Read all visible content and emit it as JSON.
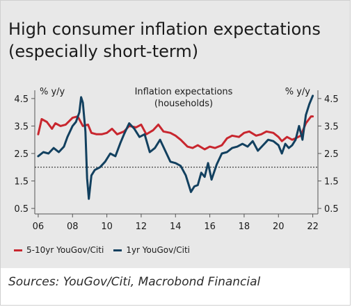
{
  "title_lines": [
    "High consumer inflation expectations",
    "(especially short-term)"
  ],
  "source": "Sources: YouGov/Citi, Macrobond Financial",
  "colors": {
    "series_red": "#c8262e",
    "series_blue": "#12405f",
    "panel_bg": "#e8e8e8",
    "reference": "#1a1a1a"
  },
  "chart_data": {
    "type": "line",
    "title": "Inflation expectations (households)",
    "title_lines": [
      "Inflation expectations",
      "(households)"
    ],
    "ylabel_left": "% y/y",
    "ylabel_right": "% y/y",
    "ylim": [
      0.3,
      4.8
    ],
    "yticks": [
      "0.5",
      "1.5",
      "2.5",
      "3.5",
      "4.5"
    ],
    "xlim": [
      2005.8,
      2022.3
    ],
    "xticks": [
      "06",
      "08",
      "10",
      "12",
      "14",
      "16",
      "18",
      "20",
      "22"
    ],
    "reference_line": 2.0,
    "grid": false,
    "legend_position": "bottom",
    "series": [
      {
        "name": "5-10yr YouGov/Citi",
        "color": "#c8262e",
        "x": [
          2006.0,
          2006.2,
          2006.5,
          2006.8,
          2007.0,
          2007.3,
          2007.6,
          2008.0,
          2008.3,
          2008.6,
          2008.9,
          2009.1,
          2009.4,
          2009.7,
          2010.0,
          2010.3,
          2010.6,
          2011.0,
          2011.3,
          2011.7,
          2012.0,
          2012.3,
          2012.7,
          2013.0,
          2013.3,
          2013.7,
          2014.0,
          2014.3,
          2014.7,
          2015.0,
          2015.3,
          2015.7,
          2016.0,
          2016.3,
          2016.7,
          2017.0,
          2017.3,
          2017.7,
          2018.0,
          2018.3,
          2018.7,
          2019.0,
          2019.3,
          2019.7,
          2020.0,
          2020.2,
          2020.5,
          2020.8,
          2021.0,
          2021.3,
          2021.6,
          2021.9,
          2022.0
        ],
        "y": [
          3.2,
          3.75,
          3.65,
          3.4,
          3.6,
          3.5,
          3.55,
          3.8,
          3.85,
          3.5,
          3.55,
          3.25,
          3.2,
          3.2,
          3.25,
          3.4,
          3.2,
          3.3,
          3.5,
          3.45,
          3.55,
          3.2,
          3.35,
          3.55,
          3.3,
          3.25,
          3.15,
          3.0,
          2.75,
          2.7,
          2.8,
          2.65,
          2.75,
          2.7,
          2.8,
          3.05,
          3.15,
          3.1,
          3.25,
          3.3,
          3.15,
          3.2,
          3.3,
          3.25,
          3.1,
          2.95,
          3.1,
          3.0,
          3.05,
          3.15,
          3.6,
          3.85,
          3.85
        ]
      },
      {
        "name": "1yr YouGov/Citi",
        "color": "#12405f",
        "x": [
          2006.0,
          2006.3,
          2006.6,
          2006.9,
          2007.2,
          2007.5,
          2007.7,
          2008.0,
          2008.2,
          2008.4,
          2008.5,
          2008.6,
          2008.75,
          2008.85,
          2008.95,
          2009.1,
          2009.3,
          2009.6,
          2009.9,
          2010.2,
          2010.5,
          2010.8,
          2011.0,
          2011.3,
          2011.6,
          2011.9,
          2012.2,
          2012.5,
          2012.8,
          2013.1,
          2013.4,
          2013.7,
          2014.0,
          2014.3,
          2014.6,
          2014.9,
          2015.1,
          2015.3,
          2015.5,
          2015.7,
          2015.9,
          2016.1,
          2016.4,
          2016.7,
          2017.0,
          2017.3,
          2017.6,
          2017.9,
          2018.2,
          2018.5,
          2018.8,
          2019.1,
          2019.4,
          2019.7,
          2020.0,
          2020.2,
          2020.4,
          2020.6,
          2020.8,
          2021.0,
          2021.2,
          2021.4,
          2021.6,
          2021.8,
          2022.0
        ],
        "y": [
          2.4,
          2.55,
          2.5,
          2.7,
          2.55,
          2.75,
          3.1,
          3.5,
          3.65,
          4.0,
          4.55,
          4.35,
          3.3,
          1.6,
          0.85,
          1.7,
          1.9,
          2.0,
          2.2,
          2.5,
          2.4,
          2.9,
          3.2,
          3.6,
          3.4,
          3.1,
          3.2,
          2.55,
          2.7,
          3.0,
          2.6,
          2.2,
          2.15,
          2.05,
          1.7,
          1.1,
          1.3,
          1.35,
          1.8,
          1.65,
          2.15,
          1.55,
          2.1,
          2.5,
          2.55,
          2.7,
          2.75,
          2.85,
          2.75,
          2.95,
          2.6,
          2.8,
          3.0,
          2.95,
          2.8,
          2.5,
          2.85,
          2.7,
          2.8,
          3.0,
          3.5,
          3.0,
          3.9,
          4.3,
          4.6
        ]
      }
    ]
  }
}
